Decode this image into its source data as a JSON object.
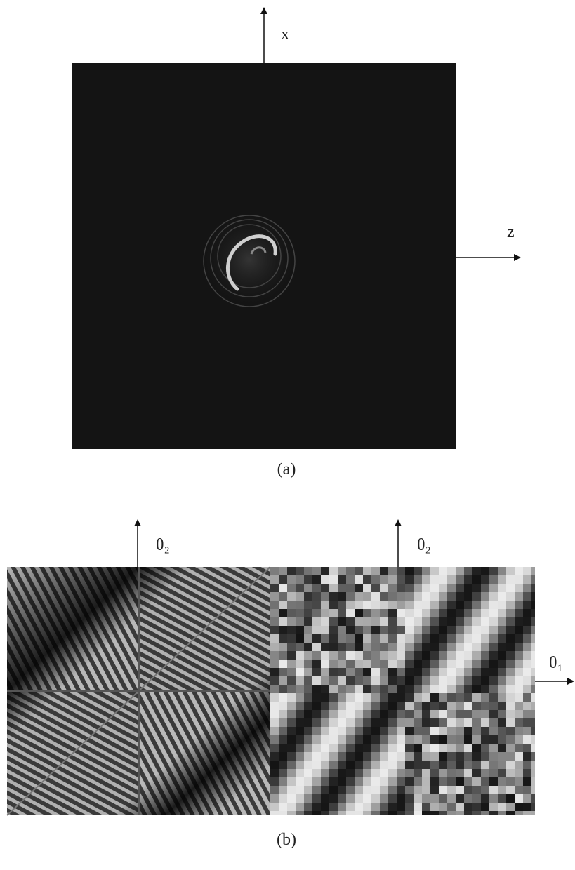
{
  "panels": [
    {
      "label": "(a)",
      "axes": {
        "vertical": "x",
        "horizontal": "z"
      }
    },
    {
      "label": "(b)",
      "axes": {
        "left_vertical": "θ₂",
        "right_vertical": "θ₂",
        "horizontal": "θ₁"
      }
    }
  ]
}
